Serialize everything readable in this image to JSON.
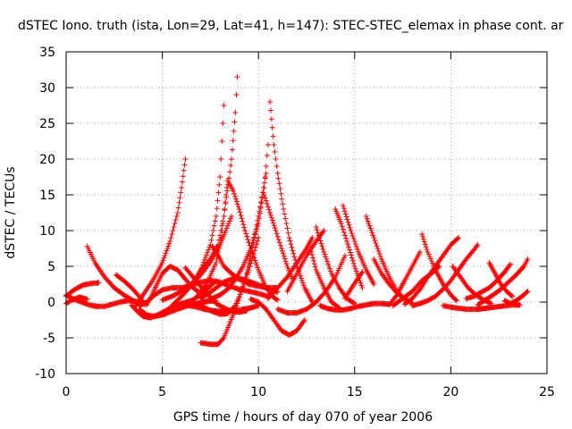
{
  "chart_data": {
    "type": "scatter",
    "title": "dSTEC Iono. truth (ista, Lon=29, Lat=41, h=147): STEC-STEC_elemax in phase cont. ar",
    "xlabel": "GPS time / hours of day 070 of year 2006",
    "ylabel": "dSTEC  / TECUs",
    "xlim": [
      0,
      25
    ],
    "ylim": [
      -10,
      35
    ],
    "xticks": [
      0,
      5,
      10,
      15,
      20,
      25
    ],
    "yticks": [
      -10,
      -5,
      0,
      5,
      10,
      15,
      20,
      25,
      30,
      35
    ],
    "grid": true,
    "legend": "none",
    "marker": "plus",
    "color": "#ff0000",
    "series": [
      {
        "x": [
          0.0,
          0.3,
          0.6,
          0.9,
          1.3,
          1.7
        ],
        "y": [
          0.8,
          1.5,
          2.0,
          2.4,
          2.6,
          2.7
        ]
      },
      {
        "x": [
          0.0,
          0.4,
          0.8,
          1.2,
          1.6,
          2.0,
          2.4,
          2.8,
          3.2,
          3.6,
          4.0
        ],
        "y": [
          1.0,
          0.4,
          0.0,
          -0.4,
          -0.6,
          -0.6,
          -0.3,
          0.0,
          0.2,
          0.1,
          -0.2
        ]
      },
      {
        "x": [
          0.0,
          0.3,
          0.7,
          1.1
        ],
        "y": [
          -0.2,
          0.3,
          0.7,
          0.4
        ]
      },
      {
        "x": [
          1.1,
          1.5,
          2.0,
          2.5,
          3.0,
          3.5,
          3.9
        ],
        "y": [
          7.8,
          5.5,
          3.5,
          2.0,
          1.0,
          0.2,
          -0.4
        ]
      },
      {
        "x": [
          2.6,
          3.0,
          3.4,
          3.8,
          4.1
        ],
        "y": [
          3.8,
          3.0,
          2.0,
          0.8,
          -0.4
        ]
      },
      {
        "x": [
          3.4,
          3.7,
          4.0,
          4.4,
          4.9,
          5.5,
          6.0,
          6.6,
          7.2,
          7.8
        ],
        "y": [
          -0.4,
          -1.3,
          -2.0,
          -2.2,
          -1.6,
          -0.7,
          -0.2,
          0.3,
          1.5,
          3.0
        ]
      },
      {
        "x": [
          3.6,
          4.0,
          4.5,
          5.0,
          5.4,
          5.8,
          6.0,
          6.2
        ],
        "y": [
          -0.6,
          1.0,
          3.0,
          5.5,
          8.5,
          12.5,
          16.0,
          20.0
        ]
      },
      {
        "x": [
          3.8,
          4.2,
          4.6,
          5.0,
          5.4,
          5.8,
          6.2,
          6.6,
          7.0,
          7.4,
          7.8
        ],
        "y": [
          -1.0,
          -1.8,
          -2.0,
          -1.8,
          -1.4,
          -1.0,
          -0.6,
          -0.3,
          -0.1,
          0.1,
          0.2
        ]
      },
      {
        "x": [
          4.2,
          4.6,
          5.0,
          5.4,
          5.8,
          6.2,
          6.6,
          7.0
        ],
        "y": [
          -0.4,
          1.8,
          4.0,
          5.0,
          4.5,
          3.2,
          2.0,
          1.2
        ]
      },
      {
        "x": [
          3.8,
          4.2,
          4.6,
          5.0,
          5.5,
          6.0,
          6.5,
          7.0,
          7.5,
          8.0,
          8.5,
          9.0,
          9.5,
          10.0,
          10.5
        ],
        "y": [
          -0.5,
          0.0,
          1.0,
          1.7,
          2.0,
          2.0,
          2.3,
          2.8,
          3.0,
          2.8,
          2.2,
          1.8,
          1.5,
          1.2,
          0.8
        ]
      },
      {
        "x": [
          5.0,
          5.5,
          6.0,
          6.5,
          7.0,
          7.5,
          8.0,
          8.3,
          8.6
        ],
        "y": [
          0.3,
          0.8,
          1.5,
          2.5,
          3.8,
          5.6,
          8.0,
          10.0,
          12.0
        ]
      },
      {
        "x": [
          5.5,
          6.0,
          6.5,
          7.0,
          7.5,
          7.8,
          8.0,
          8.2
        ],
        "y": [
          -0.5,
          0.8,
          2.3,
          4.5,
          8.0,
          12.0,
          17.5,
          27.5
        ]
      },
      {
        "x": [
          6.2,
          6.6,
          7.0,
          7.4,
          7.8,
          8.2,
          8.6,
          9.0,
          9.4
        ],
        "y": [
          4.8,
          3.5,
          2.2,
          1.0,
          -0.2,
          -0.8,
          -1.3,
          -1.4,
          -1.2
        ]
      },
      {
        "x": [
          6.0,
          6.4,
          6.8,
          7.2,
          7.6,
          8.0,
          8.4,
          8.8,
          9.2,
          9.6,
          10.0
        ],
        "y": [
          -0.2,
          -0.5,
          -0.7,
          -1.0,
          -1.2,
          -1.3,
          -1.3,
          -1.2,
          -1.0,
          -0.8,
          -0.5
        ]
      },
      {
        "x": [
          6.8,
          7.3,
          7.8,
          8.0,
          8.2,
          8.6,
          8.8,
          8.9
        ],
        "y": [
          0.8,
          2.5,
          5.5,
          8.0,
          12.0,
          20.0,
          26.5,
          31.5
        ]
      },
      {
        "x": [
          7.0,
          7.5,
          7.9,
          8.2,
          8.4,
          8.7,
          9.0,
          9.3,
          9.6,
          10.0,
          10.4,
          10.8,
          11.0
        ],
        "y": [
          4.5,
          6.0,
          8.0,
          12.0,
          17.0,
          15.5,
          13.0,
          10.0,
          7.5,
          4.5,
          2.0,
          0.6,
          0.3
        ]
      },
      {
        "x": [
          7.0,
          7.4,
          7.8,
          8.2,
          8.6,
          9.0,
          9.4,
          9.8,
          10.2,
          10.6,
          11.0
        ],
        "y": [
          0.5,
          1.2,
          2.0,
          2.8,
          3.2,
          3.3,
          3.0,
          2.6,
          2.2,
          1.8,
          1.4
        ]
      },
      {
        "x": [
          6.8,
          7.2,
          7.6,
          8.0,
          8.4,
          8.8,
          9.2,
          9.6,
          10.0,
          10.3,
          10.5
        ],
        "y": [
          -0.2,
          0.0,
          0.5,
          1.0,
          1.8,
          3.2,
          5.0,
          7.5,
          11.0,
          16.0,
          22.0
        ]
      },
      {
        "x": [
          6.8,
          7.2,
          7.6,
          8.0,
          8.4,
          8.8,
          9.2,
          9.6,
          10.0,
          10.4
        ],
        "y": [
          -0.3,
          -0.8,
          -1.3,
          -1.7,
          -1.6,
          -0.5,
          2.0,
          6.5,
          12.0,
          18.0
        ]
      },
      {
        "x": [
          7.0,
          7.5,
          7.9,
          8.2,
          8.5,
          8.8,
          9.1,
          9.5,
          10.0
        ],
        "y": [
          -5.7,
          -5.9,
          -5.9,
          -5.0,
          -3.0,
          -1.0,
          1.5,
          4.5,
          9.0
        ]
      },
      {
        "x": [
          7.6,
          7.8,
          8.0,
          8.2,
          8.6,
          9.0,
          9.5,
          10.0,
          10.5,
          11.0
        ],
        "y": [
          7.8,
          7.0,
          6.0,
          5.0,
          4.0,
          3.2,
          2.5,
          2.2,
          2.0,
          2.0
        ]
      },
      {
        "x": [
          10.6,
          10.8,
          11.0,
          11.3,
          11.6,
          12.0,
          12.4,
          12.8
        ],
        "y": [
          28.0,
          22.0,
          18.0,
          13.0,
          9.0,
          5.0,
          2.0,
          0.0
        ]
      },
      {
        "x": [
          10.3,
          10.6,
          10.9,
          11.2,
          11.5,
          11.8
        ],
        "y": [
          15.0,
          12.5,
          10.0,
          7.5,
          5.0,
          3.0
        ]
      },
      {
        "x": [
          9.6,
          10.0,
          10.4,
          10.8,
          11.2,
          11.6,
          12.0,
          12.4
        ],
        "y": [
          0.4,
          0.0,
          -1.0,
          -2.5,
          -4.0,
          -4.6,
          -4.0,
          -2.5
        ]
      },
      {
        "x": [
          10.5,
          11.0,
          11.5,
          12.0,
          12.5,
          12.8
        ],
        "y": [
          0.5,
          2.0,
          3.5,
          5.5,
          7.5,
          9.0
        ]
      },
      {
        "x": [
          11.5,
          12.0,
          12.5,
          13.0,
          13.4
        ],
        "y": [
          1.5,
          4.0,
          6.5,
          8.5,
          10.0
        ]
      },
      {
        "x": [
          11.0,
          11.5,
          12.0,
          12.5,
          13.0,
          13.5,
          14.0,
          14.5
        ],
        "y": [
          -1.0,
          -1.5,
          -1.5,
          -1.0,
          0.0,
          1.5,
          3.5,
          6.5
        ]
      },
      {
        "x": [
          12.7,
          13.0,
          13.4,
          13.8,
          14.2
        ],
        "y": [
          7.5,
          4.5,
          2.0,
          0.0,
          -0.8
        ]
      },
      {
        "x": [
          13.0,
          13.4,
          13.8,
          14.2,
          14.6,
          15.0
        ],
        "y": [
          10.5,
          7.0,
          4.0,
          2.0,
          0.5,
          -0.2
        ]
      },
      {
        "x": [
          14.0,
          14.3,
          14.6,
          15.0,
          15.4
        ],
        "y": [
          13.0,
          11.0,
          8.5,
          5.0,
          2.0
        ]
      },
      {
        "x": [
          14.4,
          14.8,
          15.2,
          15.6,
          16.0
        ],
        "y": [
          13.5,
          10.0,
          7.0,
          4.5,
          2.5
        ]
      },
      {
        "x": [
          13.2,
          13.6,
          14.0,
          14.4,
          14.8,
          15.2,
          15.6,
          16.0,
          16.4,
          16.8
        ],
        "y": [
          -0.5,
          -0.9,
          -1.1,
          -1.1,
          -0.9,
          -0.6,
          -0.4,
          -0.2,
          -0.2,
          -0.3
        ]
      },
      {
        "x": [
          14.5,
          14.8,
          15.1,
          15.4
        ],
        "y": [
          0.5,
          1.8,
          3.0,
          4.2
        ]
      },
      {
        "x": [
          15.6,
          16.0,
          16.4,
          16.8,
          17.2,
          17.6
        ],
        "y": [
          12.0,
          9.0,
          6.0,
          3.5,
          1.5,
          0.3
        ]
      },
      {
        "x": [
          16.0,
          16.4,
          16.8,
          17.2,
          17.6,
          18.0
        ],
        "y": [
          6.0,
          4.0,
          2.5,
          1.3,
          0.5,
          -0.2
        ]
      },
      {
        "x": [
          16.8,
          17.2,
          17.6,
          18.0,
          18.4
        ],
        "y": [
          -0.4,
          1.0,
          3.0,
          5.0,
          7.0
        ]
      },
      {
        "x": [
          18.5,
          18.8,
          19.2,
          19.6,
          20.0,
          20.3
        ],
        "y": [
          9.5,
          7.0,
          4.5,
          2.5,
          1.0,
          0.2
        ]
      },
      {
        "x": [
          17.0,
          17.5,
          18.0,
          18.5,
          19.0,
          19.4
        ],
        "y": [
          -0.5,
          0.5,
          1.5,
          3.0,
          4.0,
          5.0
        ]
      },
      {
        "x": [
          17.6,
          18.0,
          18.4,
          18.8,
          19.2,
          19.6,
          20.0,
          20.4
        ],
        "y": [
          -0.3,
          0.5,
          1.8,
          3.5,
          5.0,
          6.5,
          8.0,
          9.0
        ]
      },
      {
        "x": [
          18.0,
          18.4,
          18.8,
          19.2,
          19.6,
          20.0,
          20.4,
          20.8,
          21.2,
          21.4
        ],
        "y": [
          -0.5,
          -0.2,
          0.2,
          0.8,
          1.8,
          3.0,
          4.5,
          6.0,
          7.3,
          8.0
        ]
      },
      {
        "x": [
          20.1,
          20.5,
          20.9,
          21.3,
          21.7,
          22.1
        ],
        "y": [
          5.0,
          3.5,
          2.0,
          1.0,
          0.3,
          -0.2
        ]
      },
      {
        "x": [
          19.6,
          20.2,
          20.8,
          21.4,
          22.0,
          22.6,
          23.2,
          23.6
        ],
        "y": [
          -0.5,
          -0.8,
          -1.0,
          -1.0,
          -0.8,
          -0.6,
          -0.4,
          -0.4
        ]
      },
      {
        "x": [
          20.8,
          21.2,
          21.6,
          22.0,
          22.4,
          22.8,
          23.1
        ],
        "y": [
          0.5,
          0.8,
          1.4,
          2.0,
          3.0,
          4.2,
          5.3
        ]
      },
      {
        "x": [
          21.4,
          21.8,
          22.2,
          22.6,
          23.0,
          23.4,
          23.8,
          24.0
        ],
        "y": [
          -0.4,
          0.3,
          1.0,
          1.8,
          2.8,
          3.8,
          5.0,
          6.0
        ]
      },
      {
        "x": [
          22.0,
          22.3,
          22.6,
          22.9,
          23.2
        ],
        "y": [
          5.5,
          4.0,
          2.5,
          1.5,
          0.8
        ]
      },
      {
        "x": [
          22.8,
          23.1,
          23.4,
          23.7,
          24.0
        ],
        "y": [
          0.2,
          -0.2,
          0.2,
          0.8,
          1.5
        ]
      }
    ]
  }
}
